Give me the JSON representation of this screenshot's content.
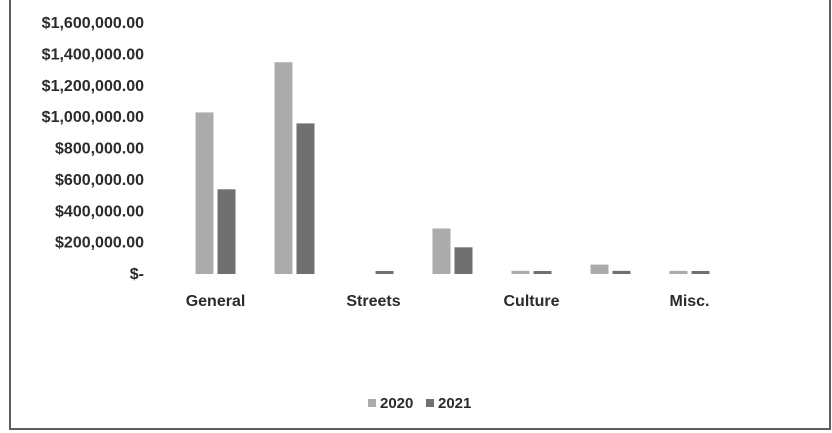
{
  "chart_data": {
    "type": "bar",
    "title": "",
    "xlabel": "",
    "ylabel": "",
    "ylim": [
      0,
      1600000
    ],
    "yticks": [
      0,
      200000,
      400000,
      600000,
      800000,
      1000000,
      1200000,
      1400000,
      1600000
    ],
    "ytick_labels": [
      "$-",
      "$200,000.00",
      "$400,000.00",
      "$600,000.00",
      "$800,000.00",
      "$1,000,000.00",
      "$1,200,000.00",
      "$1,400,000.00",
      "$1,600,000.00"
    ],
    "categories": [
      "General",
      "",
      "Streets",
      "",
      "Culture",
      "",
      "Misc."
    ],
    "series": [
      {
        "name": "2020",
        "color": "#ababab",
        "values": [
          1030000,
          1350000,
          0,
          290000,
          20000,
          60000,
          20000
        ]
      },
      {
        "name": "2021",
        "color": "#707070",
        "values": [
          540000,
          960000,
          10000,
          170000,
          15000,
          20000,
          15000
        ]
      }
    ],
    "grid": false,
    "legend": "bottom-center"
  }
}
